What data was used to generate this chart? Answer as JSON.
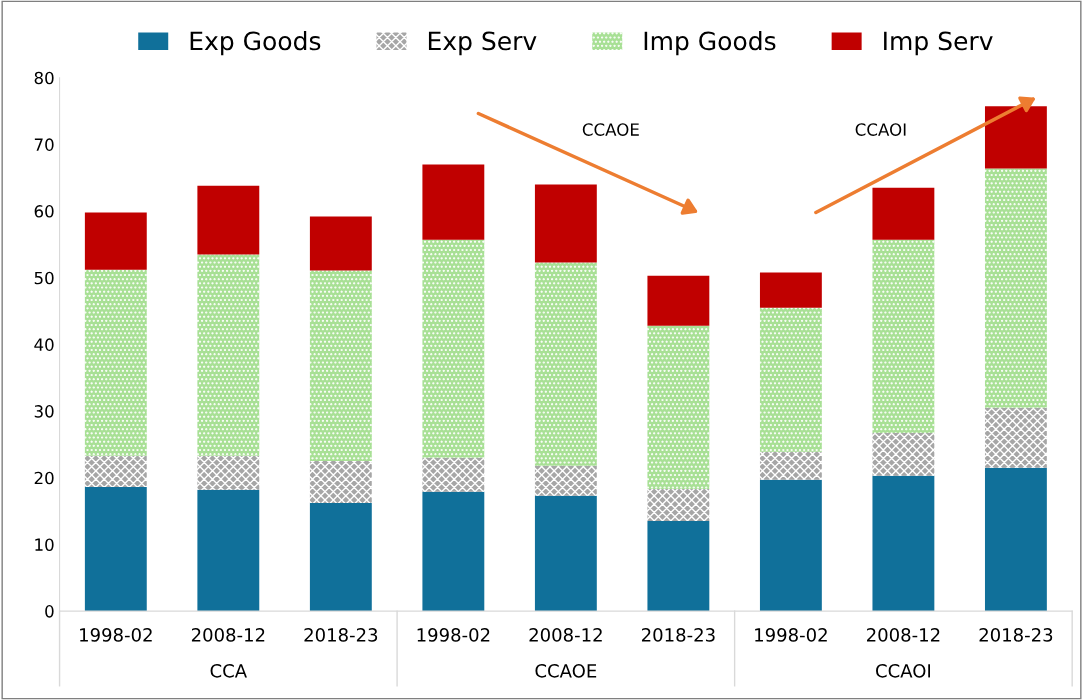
{
  "chart_data": {
    "type": "bar",
    "stacked": true,
    "categories": [
      "1998-02",
      "2008-12",
      "2018-23",
      "1998-02",
      "2008-12",
      "2018-23",
      "1998-02",
      "2008-12",
      "2018-23"
    ],
    "series": [
      {
        "name": "Exp Goods",
        "color": "#10709a",
        "values": [
          18.6,
          18.2,
          16.2,
          17.9,
          17.3,
          13.5,
          19.7,
          20.3,
          21.5
        ]
      },
      {
        "name": "Exp Serv",
        "color": "#a6a6a6",
        "values": [
          4.7,
          5.1,
          6.3,
          5.1,
          4.5,
          4.8,
          4.2,
          6.4,
          9.0
        ]
      },
      {
        "name": "Imp Goods",
        "color": "#a8e095",
        "values": [
          27.9,
          30.2,
          28.6,
          32.7,
          30.5,
          24.5,
          21.6,
          29.0,
          35.9
        ]
      },
      {
        "name": "Imp Serv",
        "color": "#c00000",
        "values": [
          8.6,
          10.3,
          8.1,
          11.3,
          11.7,
          7.5,
          5.3,
          7.8,
          9.3
        ]
      }
    ],
    "ylim": [
      0,
      80
    ],
    "yticks": [
      0,
      10,
      20,
      30,
      40,
      50,
      60,
      70,
      80
    ],
    "annotations": [
      "CCA",
      "CCAOE",
      "CCAOI",
      "CCAOE",
      "CCAOI"
    ],
    "legend": "top",
    "grid": false
  }
}
